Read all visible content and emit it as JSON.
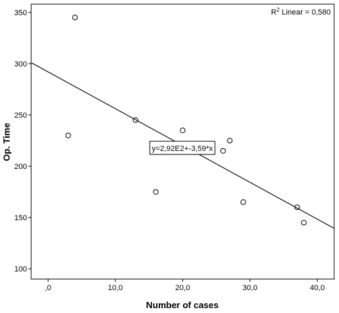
{
  "chart_data": {
    "type": "scatter",
    "xlabel": "Number of cases",
    "ylabel": "Op. Time",
    "xlim": [
      -2.5,
      42.5
    ],
    "ylim": [
      90,
      358
    ],
    "x_ticks": [
      0,
      10,
      20,
      30,
      40
    ],
    "x_tick_labels": [
      ",0",
      "10,0",
      "20,0",
      "30,0",
      "40,0"
    ],
    "y_ticks": [
      100,
      150,
      200,
      250,
      300,
      350
    ],
    "y_tick_labels": [
      "100",
      "150",
      "200",
      "250",
      "300",
      "350"
    ],
    "points": [
      {
        "x": 3,
        "y": 230
      },
      {
        "x": 4,
        "y": 345
      },
      {
        "x": 13,
        "y": 245
      },
      {
        "x": 16,
        "y": 175
      },
      {
        "x": 20,
        "y": 235
      },
      {
        "x": 26,
        "y": 215
      },
      {
        "x": 27,
        "y": 225
      },
      {
        "x": 29,
        "y": 165
      },
      {
        "x": 37,
        "y": 160
      },
      {
        "x": 38,
        "y": 145
      }
    ],
    "fit_line": {
      "intercept": 292,
      "slope": -3.59
    },
    "equation_label": "y=2,92E2+-3,59*x",
    "r2_label": {
      "prefix": "R",
      "sup": "2",
      "suffix": " Linear = 0,580"
    },
    "grid": false,
    "marker_style": "open-circle",
    "line_color": "#000000",
    "marker_color": "#000000"
  }
}
